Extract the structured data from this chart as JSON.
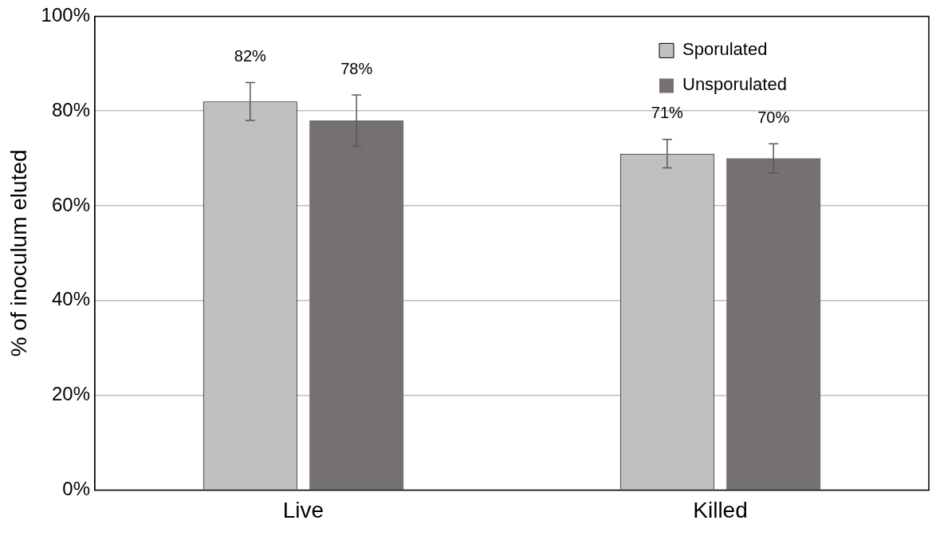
{
  "chart_data": {
    "type": "bar",
    "ylabel": "% of inoculum eluted",
    "categories": [
      "Live",
      "Killed"
    ],
    "series": [
      {
        "name": "Sporulated",
        "color": "#c0c0c0",
        "values": [
          82,
          71
        ],
        "errors": [
          4,
          3
        ],
        "value_labels": [
          "82%",
          "71%"
        ]
      },
      {
        "name": "Unsporulated",
        "color": "#767171",
        "values": [
          78,
          70
        ],
        "errors": [
          5.4,
          3.1
        ],
        "value_labels": [
          "78%",
          "70%"
        ]
      }
    ],
    "ylim": [
      0,
      100
    ],
    "yticks": [
      {
        "value": 0,
        "label": "0%"
      },
      {
        "value": 20,
        "label": "20%"
      },
      {
        "value": 40,
        "label": "40%"
      },
      {
        "value": 60,
        "label": "60%"
      },
      {
        "value": 80,
        "label": "80%"
      },
      {
        "value": 100,
        "label": "100%"
      }
    ],
    "grid": "y",
    "legend": "top right"
  }
}
